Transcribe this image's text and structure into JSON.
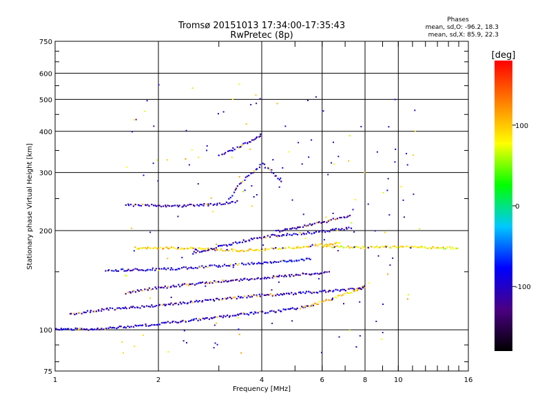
{
  "title": {
    "line1": "Tromsø 20151013 17:34:00-17:35:43",
    "line2": "RwPretec (8p)"
  },
  "phases": {
    "heading": "Phases",
    "line_o": "mean, sd,O: -96.2, 18.3",
    "line_x": "mean, sd,X: 85.9, 22.3"
  },
  "chart_data": {
    "type": "scatter",
    "xlabel": "Frequency [MHz]",
    "ylabel": "Stationary phase Virtual Height [km]",
    "xscale": "log",
    "yscale": "log",
    "xlim": [
      1,
      16
    ],
    "ylim": [
      75,
      750
    ],
    "x_ticks": [
      1,
      2,
      4,
      6,
      8,
      10,
      16
    ],
    "x_tick_labels": [
      "1",
      "2",
      "4",
      "6",
      "8",
      "10",
      "16"
    ],
    "y_ticks": [
      75,
      100,
      200,
      300,
      400,
      500,
      600,
      750
    ],
    "y_tick_labels": [
      "75",
      "100",
      "200",
      "300",
      "400",
      "500",
      "600",
      "750"
    ],
    "grid": true,
    "colorbar": {
      "label": "[deg]",
      "range": [
        -180,
        180
      ],
      "ticks": [
        100,
        0,
        -100
      ],
      "tick_labels": [
        "100",
        "0",
        "-100"
      ],
      "colors": [
        "#000000",
        "#4b0082",
        "#0000ff",
        "#00c8ff",
        "#00ff00",
        "#ffff00",
        "#ff8000",
        "#ff0000"
      ]
    },
    "traces": [
      {
        "x": [
          1.0,
          1.3,
          1.7,
          2.2,
          2.8,
          3.3,
          3.8,
          4.3,
          4.8,
          5.3,
          5.7
        ],
        "y": [
          101,
          101,
          103,
          106,
          109,
          111,
          113,
          114,
          116,
          118,
          120
        ],
        "phase": -100
      },
      {
        "x": [
          5.3,
          5.8,
          6.3,
          6.8,
          7.3,
          7.7,
          8.0
        ],
        "y": [
          118,
          121,
          124,
          128,
          131,
          134,
          136
        ],
        "phase": 100
      },
      {
        "x": [
          1.1,
          1.4,
          1.8,
          2.3,
          2.9,
          3.4,
          4.0,
          4.6,
          5.2,
          5.8,
          6.4,
          7.0,
          7.6,
          8.0
        ],
        "y": [
          112,
          116,
          118,
          121,
          124,
          126,
          128,
          129,
          130,
          131,
          132,
          133,
          134,
          136
        ],
        "phase": -105
      },
      {
        "x": [
          1.6,
          1.9,
          2.3,
          2.8,
          3.3,
          3.9,
          4.5,
          5.1,
          5.7,
          6.3
        ],
        "y": [
          130,
          134,
          137,
          140,
          142,
          144,
          146,
          148,
          149,
          150
        ],
        "phase": -110
      },
      {
        "x": [
          1.4,
          1.8,
          2.2,
          2.7,
          3.2,
          3.8,
          4.4,
          5.0,
          5.6
        ],
        "y": [
          152,
          153,
          154,
          156,
          158,
          160,
          162,
          163,
          165
        ],
        "phase": -95
      },
      {
        "x": [
          1.7,
          2.0,
          2.3,
          2.6,
          3.0,
          3.5,
          4.1,
          4.7,
          5.3,
          6.0,
          6.8
        ],
        "y": [
          178,
          178,
          178,
          177,
          176,
          175,
          176,
          178,
          180,
          182,
          184
        ],
        "phase": 95
      },
      {
        "x": [
          2.5,
          2.9,
          3.3,
          3.8,
          4.3,
          4.9,
          5.5,
          6.1,
          6.7,
          7.3
        ],
        "y": [
          172,
          178,
          184,
          190,
          194,
          196,
          198,
          200,
          203,
          205
        ],
        "phase": -100
      },
      {
        "x": [
          6.0,
          7.0,
          8.0,
          9.0,
          10.0,
          11.0,
          12.0,
          13.0,
          14.0,
          15.0
        ],
        "y": [
          180,
          179,
          179,
          179,
          179,
          179,
          179,
          178,
          178,
          178
        ],
        "phase": 85
      },
      {
        "x": [
          1.6,
          1.9,
          2.2,
          2.6,
          3.0,
          3.4
        ],
        "y": [
          240,
          240,
          238,
          240,
          242,
          246
        ],
        "phase": -105
      },
      {
        "x": [
          3.2,
          3.4,
          3.7,
          4.0,
          4.3,
          4.6
        ],
        "y": [
          250,
          275,
          300,
          320,
          300,
          280
        ],
        "phase": -100
      },
      {
        "x": [
          4.4,
          5.0,
          5.6,
          6.2,
          6.8,
          7.3
        ],
        "y": [
          200,
          205,
          210,
          215,
          220,
          222
        ],
        "phase": -115
      },
      {
        "x": [
          3.0,
          3.2,
          3.4,
          3.6,
          3.8,
          4.0
        ],
        "y": [
          340,
          350,
          360,
          370,
          380,
          395
        ],
        "phase": -100
      }
    ]
  }
}
